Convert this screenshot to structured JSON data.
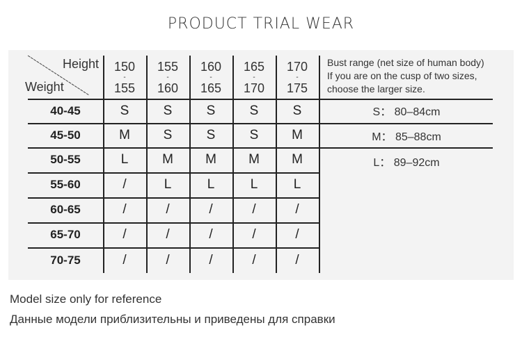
{
  "title": "PRODUCT TRIAL WEAR",
  "header": {
    "height_label": "Height",
    "weight_label": "Weight",
    "heights": [
      {
        "from": "150",
        "to": "155"
      },
      {
        "from": "155",
        "to": "160"
      },
      {
        "from": "160",
        "to": "165"
      },
      {
        "from": "165",
        "to": "170"
      },
      {
        "from": "170",
        "to": "175"
      }
    ]
  },
  "rows": [
    {
      "weight": "40-45",
      "sizes": [
        "S",
        "S",
        "S",
        "S",
        "S"
      ]
    },
    {
      "weight": "45-50",
      "sizes": [
        "M",
        "S",
        "S",
        "S",
        "M"
      ]
    },
    {
      "weight": "50-55",
      "sizes": [
        "L",
        "M",
        "M",
        "M",
        "M"
      ]
    },
    {
      "weight": "55-60",
      "sizes": [
        "/",
        "L",
        "L",
        "L",
        "L"
      ]
    },
    {
      "weight": "60-65",
      "sizes": [
        "/",
        "/",
        "/",
        "/",
        "/"
      ]
    },
    {
      "weight": "65-70",
      "sizes": [
        "/",
        "/",
        "/",
        "/",
        "/"
      ]
    },
    {
      "weight": "70-75",
      "sizes": [
        "/",
        "/",
        "/",
        "/",
        "/"
      ]
    }
  ],
  "bust": {
    "note": [
      "Bust range (net size of human body)",
      "If you are on the cusp of two sizes,",
      "choose the larger size."
    ],
    "ranges": [
      "S：  80–84cm",
      "M：  85–88cm",
      "L：  89–92cm"
    ]
  },
  "footer": [
    "Model size only for reference",
    "Данные модели приблизительны и приведены для справки"
  ]
}
